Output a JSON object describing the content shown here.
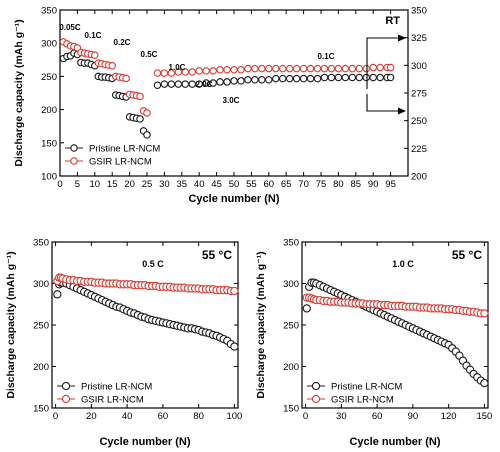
{
  "figure": {
    "panels": [
      {
        "id": "top",
        "corner_label": "RT",
        "xlabel": "Cycle number (N)",
        "ylabel": "Discharge capacity (mAh g⁻¹)",
        "legend": [
          "Pristine LR-NCM",
          "GSIR LR-NCM"
        ],
        "rate_labels": [
          "0.05C",
          "0.1C",
          "0.2C",
          "0.5C",
          "1.0C",
          "2.0C",
          "3.0C",
          "0.1C"
        ]
      },
      {
        "id": "bottom-left",
        "corner_label": "55 °C",
        "rate_label": "0.5 C",
        "xlabel": "Cycle number (N)",
        "ylabel": "Discharge capacity (mAh g⁻¹)",
        "legend": [
          "Pristine LR-NCM",
          "GSIR LR-NCM"
        ]
      },
      {
        "id": "bottom-right",
        "corner_label": "55 °C",
        "rate_label": "1.0 C",
        "xlabel": "Cycle number (N)",
        "ylabel": "Discharge capacity (mAh g⁻¹)",
        "legend": [
          "Pristine LR-NCM",
          "GSIR LR-NCM"
        ]
      }
    ]
  },
  "colors": {
    "pristine": "#1a1a1a",
    "gsir": "#d93a32",
    "axis": "#000000"
  },
  "chart_data": [
    {
      "type": "scatter",
      "title": "",
      "xlabel": "Cycle number (N)",
      "ylabel": "Discharge capacity (mAh g⁻¹)",
      "xlim": [
        0,
        100
      ],
      "ylim": [
        100,
        350
      ],
      "xticks": [
        0,
        5,
        10,
        15,
        20,
        25,
        30,
        35,
        40,
        45,
        50,
        55,
        60,
        65,
        70,
        75,
        80,
        85,
        90,
        95
      ],
      "yticks": [
        100,
        150,
        200,
        250,
        300,
        350
      ],
      "y2lim": [
        200,
        350
      ],
      "y2ticks": [
        200,
        225,
        250,
        275,
        300,
        325,
        350
      ],
      "legend_position": "bottom-left",
      "rate_segments": [
        {
          "label": "0.05C",
          "cycles": [
            1,
            3
          ]
        },
        {
          "label": "0.1C",
          "cycles": [
            4,
            5
          ]
        },
        {
          "label": "0.2C",
          "cycles": [
            6,
            10
          ]
        },
        {
          "label": "0.5C",
          "cycles": [
            11,
            15
          ]
        },
        {
          "label": "1.0C",
          "cycles": [
            16,
            19
          ]
        },
        {
          "label": "2.0C",
          "cycles": [
            20,
            23
          ]
        },
        {
          "label": "3.0C",
          "cycles": [
            24,
            25
          ]
        },
        {
          "label": "0.1C",
          "cycles": [
            28,
            95
          ]
        }
      ],
      "series": [
        {
          "name": "Pristine LR-NCM",
          "color": "#1a1a1a",
          "axis": "left",
          "x": [
            1,
            2,
            3,
            4,
            5,
            6,
            7,
            8,
            9,
            10,
            11,
            12,
            13,
            14,
            15,
            16,
            17,
            18,
            19,
            20,
            21,
            22,
            23,
            24,
            25
          ],
          "y": [
            277,
            280,
            281,
            285,
            283,
            271,
            270,
            270,
            268,
            266,
            250,
            249,
            249,
            248,
            247,
            222,
            221,
            220,
            219,
            189,
            188,
            187,
            186,
            168,
            162
          ]
        },
        {
          "name": "GSIR LR-NCM",
          "color": "#d93a32",
          "axis": "left",
          "x": [
            1,
            2,
            3,
            4,
            5,
            6,
            7,
            8,
            9,
            10,
            11,
            12,
            13,
            14,
            15,
            16,
            17,
            18,
            19,
            20,
            21,
            22,
            23,
            24,
            25
          ],
          "y": [
            302,
            299,
            296,
            295,
            293,
            286,
            285,
            284,
            283,
            282,
            270,
            269,
            268,
            267,
            266,
            250,
            249,
            248,
            247,
            223,
            222,
            221,
            220,
            198,
            195
          ]
        },
        {
          "name": "Pristine LR-NCM",
          "color": "#1a1a1a",
          "axis": "right",
          "x": [
            28,
            30,
            32,
            34,
            36,
            38,
            40,
            42,
            44,
            46,
            48,
            50,
            52,
            54,
            56,
            58,
            60,
            62,
            64,
            66,
            68,
            70,
            72,
            74,
            76,
            78,
            80,
            82,
            84,
            86,
            88,
            90,
            92,
            94,
            95
          ],
          "y": [
            282,
            283,
            283,
            283,
            283,
            283,
            283,
            284,
            284,
            285,
            285,
            286,
            286,
            287,
            287,
            287,
            287,
            288,
            288,
            288,
            288,
            288,
            288,
            288,
            289,
            289,
            289,
            289,
            289,
            289,
            289,
            289,
            289,
            289,
            289
          ]
        },
        {
          "name": "GSIR LR-NCM",
          "color": "#d93a32",
          "axis": "right",
          "x": [
            28,
            30,
            32,
            34,
            36,
            38,
            40,
            42,
            44,
            46,
            48,
            50,
            52,
            54,
            56,
            58,
            60,
            62,
            64,
            66,
            68,
            70,
            72,
            74,
            76,
            78,
            80,
            82,
            84,
            86,
            88,
            90,
            92,
            94,
            95
          ],
          "y": [
            293,
            293,
            293,
            294,
            294,
            294,
            295,
            295,
            295,
            296,
            296,
            296,
            296,
            297,
            297,
            297,
            297,
            297,
            297,
            297,
            297,
            297,
            297,
            297,
            297,
            297,
            297,
            297,
            297,
            297,
            297,
            298,
            298,
            298,
            298
          ]
        }
      ]
    },
    {
      "type": "scatter",
      "title": "",
      "xlabel": "Cycle number (N)",
      "ylabel": "Discharge capacity (mAh g⁻¹)",
      "xlim": [
        -2,
        102
      ],
      "ylim": [
        150,
        350
      ],
      "xticks": [
        0,
        20,
        40,
        60,
        80,
        100
      ],
      "yticks": [
        150,
        200,
        250,
        300,
        350
      ],
      "legend_position": "bottom-left",
      "series": [
        {
          "name": "Pristine LR-NCM",
          "color": "#1a1a1a",
          "x": [
            1,
            2,
            3,
            4,
            6,
            8,
            10,
            12,
            14,
            16,
            18,
            20,
            22,
            24,
            26,
            28,
            30,
            32,
            34,
            36,
            38,
            40,
            42,
            44,
            46,
            48,
            50,
            52,
            54,
            56,
            58,
            60,
            62,
            64,
            66,
            68,
            70,
            72,
            74,
            76,
            78,
            80,
            82,
            84,
            86,
            88,
            90,
            92,
            94,
            96,
            98,
            100
          ],
          "y": [
            287,
            299,
            301,
            301,
            300,
            298,
            296,
            294,
            292,
            290,
            288,
            286,
            284,
            282,
            280,
            278,
            276,
            274,
            272,
            271,
            269,
            267,
            265,
            264,
            262,
            260,
            259,
            257,
            256,
            255,
            254,
            253,
            252,
            251,
            250,
            249,
            248,
            247,
            246,
            246,
            245,
            244,
            242,
            241,
            240,
            238,
            237,
            235,
            233,
            231,
            227,
            224
          ]
        },
        {
          "name": "GSIR LR-NCM",
          "color": "#d93a32",
          "x": [
            1,
            2,
            3,
            4,
            6,
            8,
            10,
            12,
            14,
            16,
            18,
            20,
            22,
            24,
            26,
            28,
            30,
            32,
            34,
            36,
            38,
            40,
            42,
            44,
            46,
            48,
            50,
            52,
            54,
            56,
            58,
            60,
            62,
            64,
            66,
            68,
            70,
            72,
            74,
            76,
            78,
            80,
            82,
            84,
            86,
            88,
            90,
            92,
            94,
            96,
            98,
            100
          ],
          "y": [
            303,
            307,
            307,
            306,
            305,
            304,
            304,
            303,
            303,
            302,
            302,
            302,
            301,
            301,
            301,
            300,
            300,
            300,
            300,
            299,
            299,
            299,
            299,
            298,
            298,
            298,
            298,
            297,
            297,
            297,
            296,
            296,
            296,
            296,
            295,
            295,
            295,
            295,
            294,
            294,
            294,
            294,
            293,
            293,
            293,
            293,
            292,
            292,
            292,
            292,
            291,
            291
          ]
        }
      ]
    },
    {
      "type": "scatter",
      "title": "",
      "xlabel": "Cycle number (N)",
      "ylabel": "Discharge capacity (mAh g⁻¹)",
      "xlim": [
        -3,
        153
      ],
      "ylim": [
        150,
        350
      ],
      "xticks": [
        0,
        30,
        60,
        90,
        120,
        150
      ],
      "yticks": [
        150,
        200,
        250,
        300,
        350
      ],
      "legend_position": "bottom-left",
      "series": [
        {
          "name": "Pristine LR-NCM",
          "color": "#1a1a1a",
          "x": [
            1,
            3,
            5,
            7,
            9,
            12,
            15,
            18,
            21,
            24,
            27,
            30,
            33,
            36,
            39,
            42,
            45,
            48,
            51,
            54,
            57,
            60,
            63,
            66,
            69,
            72,
            75,
            78,
            81,
            84,
            87,
            90,
            93,
            96,
            99,
            102,
            105,
            108,
            111,
            114,
            117,
            120,
            123,
            126,
            129,
            132,
            135,
            138,
            141,
            144,
            147,
            150
          ],
          "y": [
            270,
            296,
            301,
            301,
            300,
            298,
            296,
            294,
            292,
            290,
            288,
            286,
            284,
            282,
            280,
            278,
            276,
            274,
            272,
            270,
            268,
            266,
            264,
            262,
            260,
            258,
            256,
            254,
            252,
            250,
            248,
            246,
            244,
            242,
            240,
            238,
            236,
            234,
            232,
            230,
            228,
            226,
            222,
            218,
            213,
            207,
            201,
            196,
            191,
            187,
            183,
            180
          ]
        },
        {
          "name": "GSIR LR-NCM",
          "color": "#d93a32",
          "x": [
            1,
            3,
            5,
            7,
            9,
            12,
            15,
            18,
            21,
            24,
            27,
            30,
            33,
            36,
            39,
            42,
            45,
            48,
            51,
            54,
            57,
            60,
            63,
            66,
            69,
            72,
            75,
            78,
            81,
            84,
            87,
            90,
            93,
            96,
            99,
            102,
            105,
            108,
            111,
            114,
            117,
            120,
            123,
            126,
            129,
            132,
            135,
            138,
            141,
            144,
            147,
            150
          ],
          "y": [
            283,
            283,
            282,
            281,
            280,
            280,
            279,
            279,
            278,
            278,
            278,
            277,
            277,
            277,
            276,
            276,
            276,
            276,
            275,
            275,
            275,
            275,
            274,
            274,
            274,
            273,
            273,
            273,
            273,
            272,
            272,
            272,
            272,
            271,
            271,
            271,
            270,
            270,
            270,
            270,
            269,
            269,
            269,
            268,
            268,
            267,
            267,
            266,
            266,
            265,
            264,
            264
          ]
        }
      ]
    }
  ]
}
